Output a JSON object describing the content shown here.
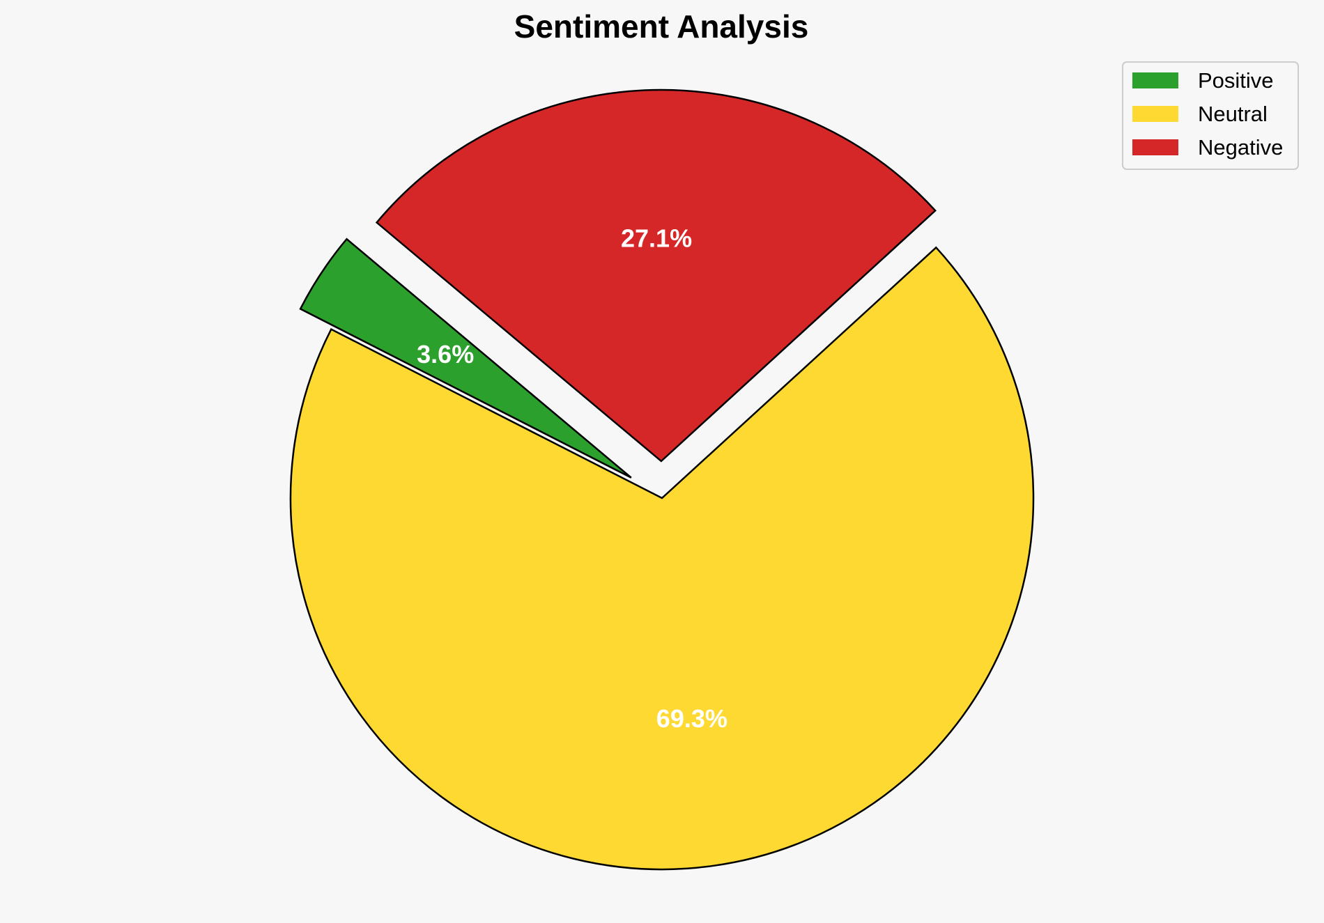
{
  "chart_data": {
    "type": "pie",
    "title": "Sentiment Analysis",
    "start_angle_deg": 140,
    "direction": "counterclockwise",
    "legend_position": "top-right",
    "slices": [
      {
        "label": "Positive",
        "value": 3.6,
        "value_label": "3.6%",
        "color": "#2ca02c",
        "exploded": true
      },
      {
        "label": "Neutral",
        "value": 69.3,
        "value_label": "69.3%",
        "color": "#fdd931",
        "exploded": false
      },
      {
        "label": "Negative",
        "value": 27.1,
        "value_label": "27.1%",
        "color": "#d62728",
        "exploded": true
      }
    ],
    "edge_color": "#000000"
  }
}
